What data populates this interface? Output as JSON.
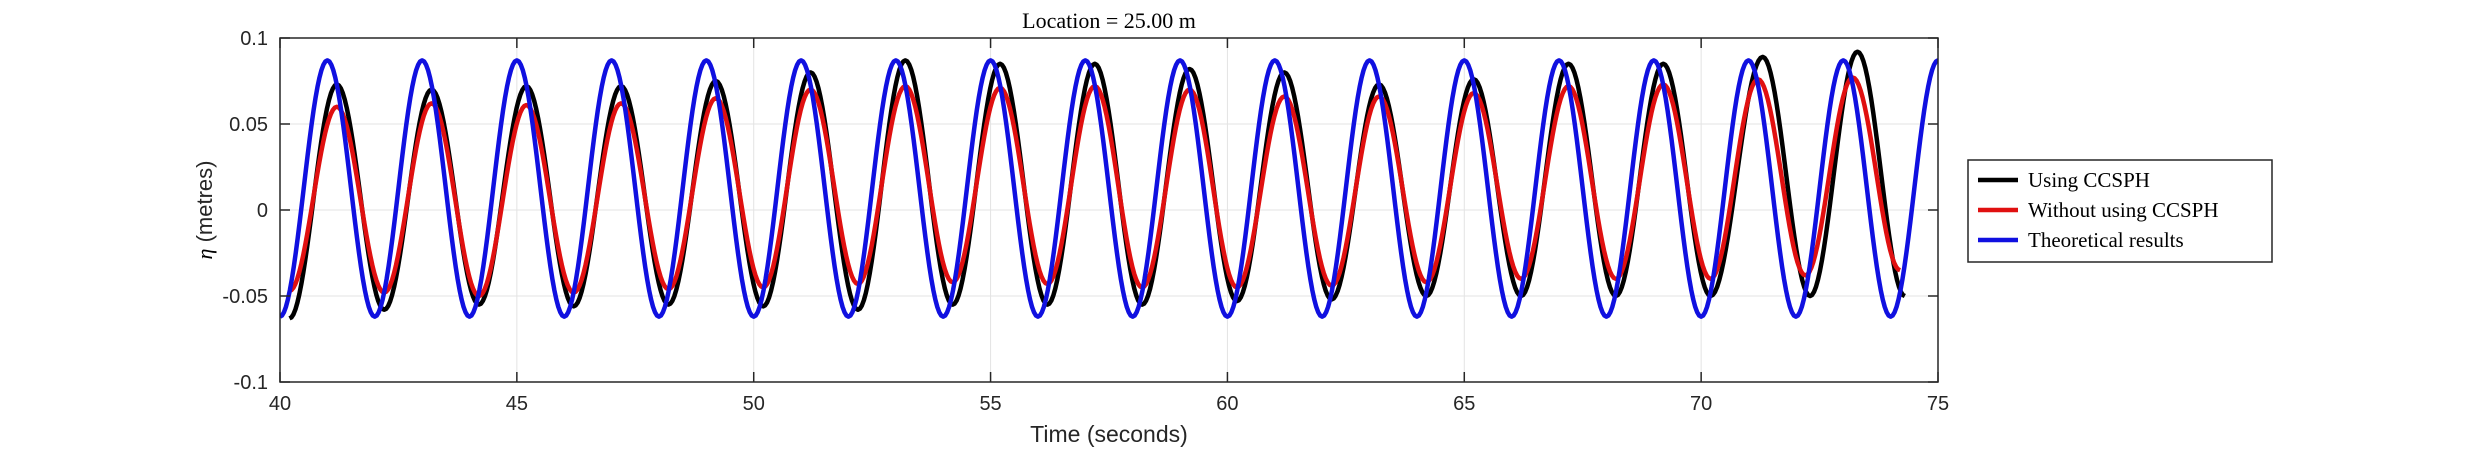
{
  "chart_data": {
    "type": "line",
    "title": "Location = 25.00 m",
    "xlabel": "Time (seconds)",
    "ylabel_symbol": "η",
    "ylabel_text": " (metres)",
    "xlim": [
      40,
      75
    ],
    "ylim": [
      -0.1,
      0.1
    ],
    "xticks": [
      40,
      45,
      50,
      55,
      60,
      65,
      70,
      75
    ],
    "xtick_labels": [
      "40",
      "45",
      "50",
      "55",
      "60",
      "65",
      "70",
      "75"
    ],
    "yticks": [
      -0.1,
      -0.05,
      0,
      0.05,
      0.1
    ],
    "ytick_labels": [
      "-0.1",
      "-0.05",
      "0",
      "0.05",
      "0.1"
    ],
    "grid": true,
    "legend_position": "outside-right",
    "period_seconds": 2.0,
    "series": [
      {
        "name": "Using CCSPH",
        "color": "#000000",
        "crest_times": [
          41.2,
          43.2,
          45.2,
          47.2,
          49.2,
          51.2,
          53.2,
          55.2,
          57.2,
          59.2,
          61.2,
          63.2,
          65.2,
          67.2,
          69.2,
          71.3,
          73.3
        ],
        "crest_values": [
          0.073,
          0.07,
          0.072,
          0.072,
          0.075,
          0.08,
          0.087,
          0.085,
          0.085,
          0.082,
          0.08,
          0.073,
          0.076,
          0.085,
          0.085,
          0.089,
          0.092
        ],
        "trough_values": [
          -0.063,
          -0.058,
          -0.055,
          -0.056,
          -0.055,
          -0.056,
          -0.058,
          -0.055,
          -0.055,
          -0.055,
          -0.053,
          -0.052,
          -0.05,
          -0.05,
          -0.05,
          -0.05,
          -0.05,
          -0.05
        ]
      },
      {
        "name": "Without using CCSPH",
        "color": "#e01010",
        "crest_times": [
          41.2,
          43.2,
          45.2,
          47.2,
          49.2,
          51.2,
          53.2,
          55.2,
          57.2,
          59.2,
          61.2,
          63.2,
          65.2,
          67.2,
          69.2,
          71.2,
          73.2
        ],
        "crest_values": [
          0.06,
          0.062,
          0.061,
          0.062,
          0.065,
          0.07,
          0.072,
          0.071,
          0.072,
          0.07,
          0.066,
          0.066,
          0.068,
          0.072,
          0.073,
          0.076,
          0.077
        ],
        "trough_values": [
          -0.047,
          -0.048,
          -0.05,
          -0.048,
          -0.046,
          -0.045,
          -0.043,
          -0.042,
          -0.043,
          -0.045,
          -0.045,
          -0.044,
          -0.042,
          -0.04,
          -0.04,
          -0.04,
          -0.038,
          -0.035
        ]
      },
      {
        "name": "Theoretical results",
        "color": "#1010e0",
        "crest_times": [
          41.0,
          43.0,
          45.0,
          47.0,
          49.0,
          51.0,
          53.0,
          55.0,
          57.0,
          59.0,
          61.0,
          63.0,
          65.0,
          67.0,
          69.0,
          71.0,
          73.0,
          75.0
        ],
        "crest_values": [
          0.087,
          0.087,
          0.087,
          0.087,
          0.087,
          0.087,
          0.087,
          0.087,
          0.087,
          0.087,
          0.087,
          0.087,
          0.087,
          0.087,
          0.087,
          0.087,
          0.087,
          0.087
        ],
        "trough_values": [
          -0.062,
          -0.062,
          -0.062,
          -0.062,
          -0.062,
          -0.062,
          -0.062,
          -0.062,
          -0.062,
          -0.062,
          -0.062,
          -0.062,
          -0.062,
          -0.062,
          -0.062,
          -0.062,
          -0.062,
          -0.062,
          -0.062
        ]
      }
    ]
  }
}
